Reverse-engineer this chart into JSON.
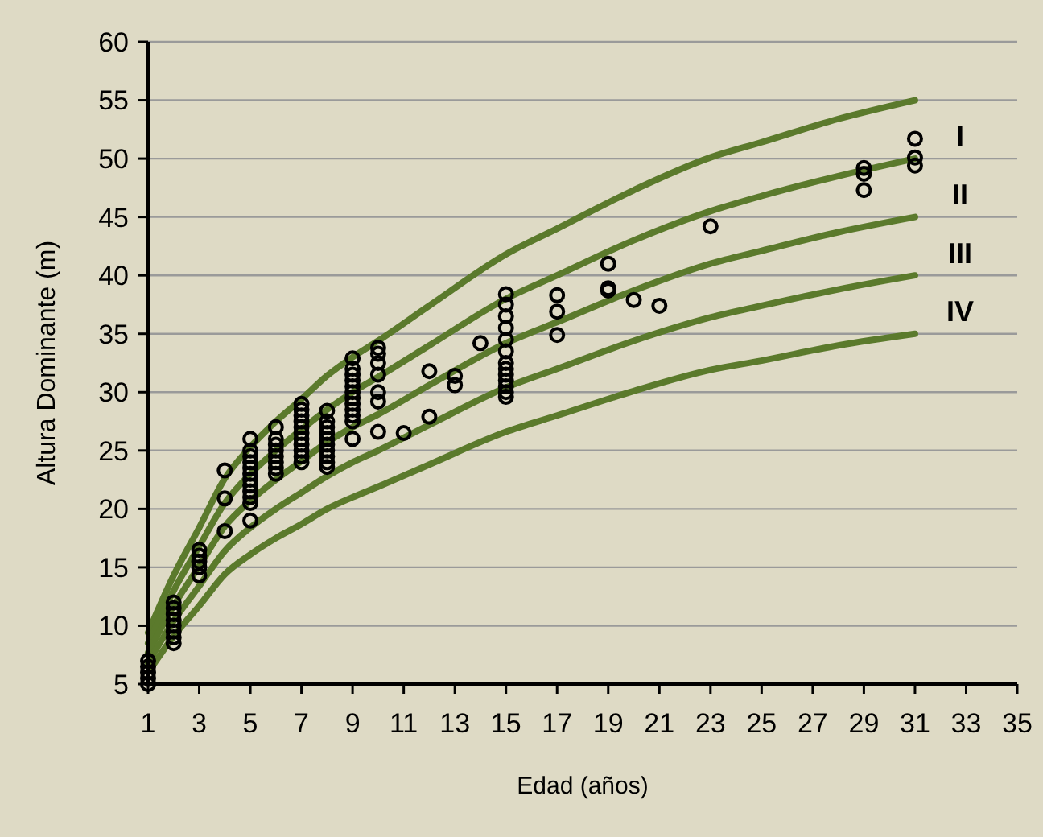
{
  "chart_data": {
    "type": "line",
    "xlabel": "Edad (años)",
    "ylabel": "Altura Dominante (m)",
    "xlim": [
      1,
      35
    ],
    "xticks": [
      1,
      3,
      5,
      7,
      9,
      11,
      13,
      15,
      17,
      19,
      21,
      23,
      25,
      27,
      29,
      31,
      33,
      35
    ],
    "ylim": [
      5,
      60
    ],
    "yticks": [
      5,
      10,
      15,
      20,
      25,
      30,
      35,
      40,
      45,
      50,
      55,
      60
    ],
    "grid": "y",
    "line_style": "solid",
    "series": [
      {
        "color": "#5b7a2c",
        "x": [
          1,
          2,
          3,
          4,
          5,
          6,
          7,
          8,
          9,
          10,
          12,
          15,
          17,
          20,
          23,
          25,
          28,
          31
        ],
        "values": [
          9.4,
          14.3,
          18.4,
          22.6,
          25.3,
          27.5,
          29.4,
          31.4,
          33,
          34.4,
          37.4,
          41.8,
          44,
          47.3,
          50.1,
          51.4,
          53.4,
          55
        ]
      },
      {
        "color": "#5b7a2c",
        "x": [
          1,
          2,
          3,
          4,
          5,
          6,
          7,
          8,
          9,
          10,
          12,
          15,
          17,
          20,
          23,
          25,
          28,
          31
        ],
        "values": [
          8.5,
          13,
          16.8,
          20.5,
          23,
          25,
          26.8,
          28.5,
          30,
          31.3,
          34,
          38,
          40,
          43,
          45.5,
          46.8,
          48.5,
          50
        ]
      },
      {
        "color": "#5b7a2c",
        "x": [
          1,
          2,
          3,
          4,
          5,
          6,
          7,
          8,
          9,
          10,
          12,
          15,
          17,
          20,
          23,
          25,
          28,
          31
        ],
        "values": [
          7.7,
          11.7,
          15.1,
          18.5,
          20.7,
          22.5,
          24.1,
          25.7,
          27,
          28.1,
          30.6,
          34.2,
          36,
          38.7,
          41,
          42.1,
          43.7,
          45
        ]
      },
      {
        "color": "#5b7a2c",
        "x": [
          1,
          2,
          3,
          4,
          5,
          6,
          7,
          8,
          9,
          10,
          12,
          15,
          17,
          20,
          23,
          25,
          28,
          31
        ],
        "values": [
          6.8,
          10.4,
          13.4,
          16.4,
          18.4,
          20,
          21.4,
          22.8,
          24,
          25,
          27.2,
          30.4,
          32,
          34.4,
          36.4,
          37.4,
          38.8,
          40
        ]
      },
      {
        "color": "#5b7a2c",
        "x": [
          1,
          2,
          3,
          4,
          5,
          6,
          7,
          8,
          9,
          10,
          12,
          15,
          17,
          20,
          23,
          25,
          28,
          31
        ],
        "values": [
          6,
          9.1,
          11.7,
          14.4,
          16.1,
          17.5,
          18.7,
          20,
          21,
          21.9,
          23.8,
          26.6,
          28,
          30.1,
          31.9,
          32.7,
          34,
          35
        ]
      },
      {
        "type": "scatter",
        "marker": "circle",
        "color": "#000000",
        "x": [
          1,
          1,
          1,
          1,
          1,
          2,
          2,
          2,
          2,
          2,
          2,
          2,
          2,
          3,
          3,
          3,
          3,
          3,
          4,
          4,
          4,
          5,
          5,
          5,
          5,
          5,
          5,
          5,
          5,
          5,
          5,
          5,
          5,
          6,
          6,
          6,
          6,
          6,
          6,
          6,
          6,
          7,
          7,
          7,
          7,
          7,
          7,
          7,
          7,
          7,
          7,
          7,
          8,
          8,
          8,
          8,
          8,
          8,
          8,
          8,
          8,
          8,
          9,
          9,
          9,
          9,
          9,
          9,
          9,
          9,
          9,
          9,
          9,
          9,
          10,
          10,
          10,
          10,
          10,
          10,
          10,
          11,
          12,
          12,
          13,
          13,
          14,
          15,
          15,
          15,
          15,
          15,
          15,
          15,
          15,
          15,
          15,
          15,
          15,
          15,
          17,
          17,
          17,
          19,
          19,
          19,
          20,
          21,
          23,
          29,
          29,
          29,
          31,
          31,
          31
        ],
        "values": [
          5,
          5.5,
          6,
          6.5,
          7,
          8.5,
          9,
          9.5,
          10,
          10.5,
          11,
          11.5,
          12,
          14.3,
          15,
          15.5,
          16,
          16.5,
          23.3,
          20.9,
          18.1,
          26,
          25,
          24.5,
          24,
          23.5,
          23,
          22.5,
          22,
          21.5,
          21,
          20.5,
          19,
          27,
          26,
          25.5,
          25,
          24.5,
          24,
          23.5,
          23,
          29,
          28.5,
          28,
          27.5,
          27,
          26.5,
          26,
          25.5,
          25,
          24.5,
          24,
          28.4,
          27.5,
          27,
          26.5,
          26,
          25.5,
          25,
          24.5,
          24,
          23.6,
          32.9,
          32,
          31.5,
          31,
          30.5,
          30,
          29.5,
          29,
          28.5,
          28,
          27.5,
          26,
          33.8,
          33.3,
          32.5,
          31.5,
          30,
          29.2,
          26.6,
          26.5,
          31.8,
          27.9,
          31.4,
          30.6,
          34.2,
          38.4,
          37.5,
          36.5,
          35.5,
          34.5,
          33.5,
          32.5,
          32,
          31.5,
          31,
          30.5,
          30,
          29.6,
          38.3,
          36.9,
          34.9,
          41,
          38.9,
          38.7,
          37.9,
          37.4,
          44.2,
          49.2,
          48.7,
          47.3,
          51.7,
          50.1,
          49.4
        ]
      }
    ],
    "annotations": [
      "I",
      "II",
      "III",
      "IV"
    ]
  }
}
